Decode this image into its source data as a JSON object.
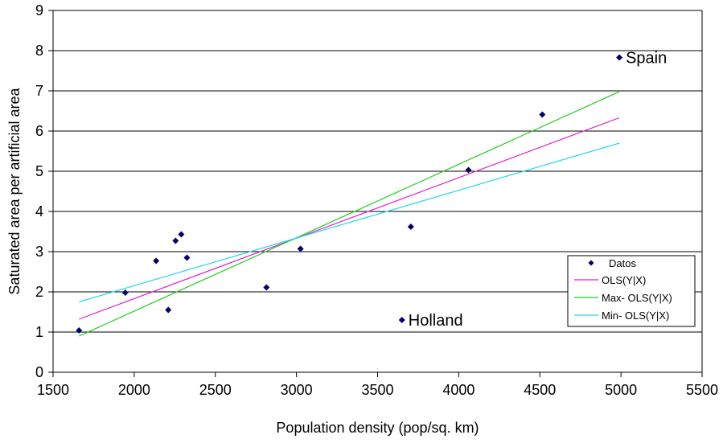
{
  "chart_data": {
    "type": "scatter",
    "title": "",
    "xlabel": "Population density (pop/sq. km)",
    "ylabel": "Saturated area per artificial area",
    "xlim": [
      1500,
      5500
    ],
    "ylim": [
      0,
      9
    ],
    "x_ticks": [
      1500,
      2000,
      2500,
      3000,
      3500,
      4000,
      4500,
      5000,
      5500
    ],
    "y_ticks": [
      0,
      1,
      2,
      3,
      4,
      5,
      6,
      7,
      8,
      9
    ],
    "grid": "horizontal",
    "legend_position": "right",
    "points": {
      "name": "Datos",
      "color": "#000066",
      "x": [
        1660,
        1945,
        2135,
        2210,
        2255,
        2290,
        2325,
        2815,
        3025,
        3650,
        3705,
        4060,
        4515,
        4990
      ],
      "y": [
        1.04,
        1.98,
        2.77,
        1.55,
        3.27,
        3.43,
        2.85,
        2.11,
        3.07,
        1.3,
        3.62,
        5.03,
        6.41,
        7.83
      ]
    },
    "lines": [
      {
        "name": "OLS(Y|X)",
        "color": "#e020d0",
        "x": [
          1660,
          4990
        ],
        "y": [
          1.32,
          6.33
        ]
      },
      {
        "name": "Max- OLS(Y|X)",
        "color": "#22cc22",
        "x": [
          1660,
          4990
        ],
        "y": [
          0.9,
          6.98
        ]
      },
      {
        "name": "Min- OLS(Y|X)",
        "color": "#22d8e8",
        "x": [
          1660,
          4990
        ],
        "y": [
          1.75,
          5.7
        ]
      }
    ],
    "annotations": [
      {
        "text": "Spain",
        "x": 4990,
        "y": 7.83
      },
      {
        "text": "Holland",
        "x": 3650,
        "y": 1.3
      }
    ]
  }
}
